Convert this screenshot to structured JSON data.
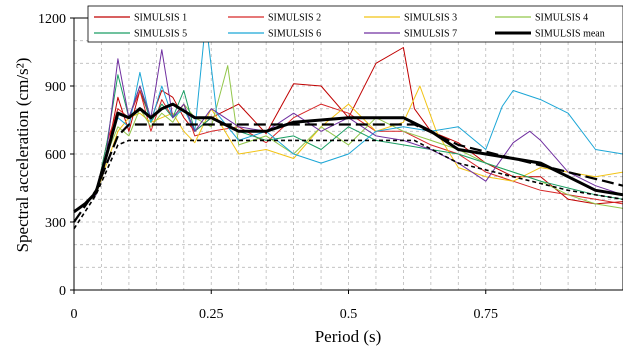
{
  "chart_data": {
    "type": "line",
    "title": "",
    "xlabel": "Period (s)",
    "ylabel": "Spectral acceleration (cm/s²)",
    "xlim": [
      0,
      1.0
    ],
    "ylim": [
      0,
      1200
    ],
    "x_ticks": [
      0,
      0.25,
      0.5,
      0.75
    ],
    "x_tick_labels": [
      "0",
      "0.25",
      "0.5",
      "0.75"
    ],
    "y_ticks": [
      0,
      300,
      600,
      900,
      1200
    ],
    "y_tick_labels": [
      "0",
      "300",
      "600",
      "900",
      "1200"
    ],
    "grid": "dashed",
    "legend_position": "top",
    "series": [
      {
        "name": "SIMULSIS 1",
        "color": "#c00000",
        "style": "solid",
        "points": [
          [
            0,
            350
          ],
          [
            0.02,
            380
          ],
          [
            0.04,
            420
          ],
          [
            0.06,
            600
          ],
          [
            0.08,
            850
          ],
          [
            0.1,
            700
          ],
          [
            0.12,
            880
          ],
          [
            0.14,
            750
          ],
          [
            0.16,
            880
          ],
          [
            0.18,
            850
          ],
          [
            0.2,
            760
          ],
          [
            0.22,
            700
          ],
          [
            0.25,
            760
          ],
          [
            0.3,
            820
          ],
          [
            0.35,
            690
          ],
          [
            0.4,
            910
          ],
          [
            0.45,
            900
          ],
          [
            0.5,
            760
          ],
          [
            0.55,
            1000
          ],
          [
            0.6,
            1070
          ],
          [
            0.62,
            800
          ],
          [
            0.65,
            700
          ],
          [
            0.7,
            650
          ],
          [
            0.75,
            560
          ],
          [
            0.8,
            500
          ],
          [
            0.85,
            500
          ],
          [
            0.9,
            400
          ],
          [
            0.95,
            380
          ],
          [
            1.0,
            390
          ]
        ]
      },
      {
        "name": "SIMULSIS 2",
        "color": "#d62728",
        "style": "solid",
        "points": [
          [
            0,
            350
          ],
          [
            0.02,
            380
          ],
          [
            0.04,
            420
          ],
          [
            0.06,
            650
          ],
          [
            0.08,
            800
          ],
          [
            0.1,
            760
          ],
          [
            0.12,
            880
          ],
          [
            0.14,
            700
          ],
          [
            0.16,
            840
          ],
          [
            0.18,
            760
          ],
          [
            0.2,
            820
          ],
          [
            0.22,
            680
          ],
          [
            0.25,
            700
          ],
          [
            0.3,
            720
          ],
          [
            0.35,
            650
          ],
          [
            0.4,
            760
          ],
          [
            0.45,
            820
          ],
          [
            0.5,
            780
          ],
          [
            0.55,
            700
          ],
          [
            0.6,
            700
          ],
          [
            0.65,
            640
          ],
          [
            0.7,
            600
          ],
          [
            0.75,
            520
          ],
          [
            0.8,
            480
          ],
          [
            0.85,
            440
          ],
          [
            0.9,
            420
          ],
          [
            0.95,
            400
          ],
          [
            1.0,
            380
          ]
        ]
      },
      {
        "name": "SIMULSIS 3",
        "color": "#f2c314",
        "style": "solid",
        "points": [
          [
            0,
            350
          ],
          [
            0.02,
            380
          ],
          [
            0.04,
            420
          ],
          [
            0.06,
            560
          ],
          [
            0.08,
            700
          ],
          [
            0.1,
            760
          ],
          [
            0.12,
            780
          ],
          [
            0.14,
            740
          ],
          [
            0.16,
            760
          ],
          [
            0.18,
            780
          ],
          [
            0.2,
            700
          ],
          [
            0.22,
            650
          ],
          [
            0.25,
            800
          ],
          [
            0.3,
            600
          ],
          [
            0.35,
            620
          ],
          [
            0.4,
            580
          ],
          [
            0.45,
            720
          ],
          [
            0.5,
            820
          ],
          [
            0.55,
            700
          ],
          [
            0.6,
            740
          ],
          [
            0.63,
            900
          ],
          [
            0.66,
            700
          ],
          [
            0.7,
            540
          ],
          [
            0.75,
            500
          ],
          [
            0.8,
            480
          ],
          [
            0.85,
            540
          ],
          [
            0.9,
            520
          ],
          [
            0.95,
            500
          ],
          [
            1.0,
            520
          ]
        ]
      },
      {
        "name": "SIMULSIS 4",
        "color": "#92c64a",
        "style": "solid",
        "points": [
          [
            0,
            350
          ],
          [
            0.02,
            380
          ],
          [
            0.04,
            420
          ],
          [
            0.06,
            600
          ],
          [
            0.08,
            720
          ],
          [
            0.1,
            680
          ],
          [
            0.12,
            800
          ],
          [
            0.14,
            720
          ],
          [
            0.16,
            780
          ],
          [
            0.18,
            740
          ],
          [
            0.2,
            820
          ],
          [
            0.22,
            760
          ],
          [
            0.25,
            720
          ],
          [
            0.28,
            990
          ],
          [
            0.3,
            640
          ],
          [
            0.35,
            680
          ],
          [
            0.4,
            600
          ],
          [
            0.45,
            720
          ],
          [
            0.5,
            640
          ],
          [
            0.55,
            760
          ],
          [
            0.6,
            700
          ],
          [
            0.65,
            660
          ],
          [
            0.7,
            620
          ],
          [
            0.75,
            560
          ],
          [
            0.8,
            520
          ],
          [
            0.85,
            480
          ],
          [
            0.9,
            420
          ],
          [
            0.95,
            380
          ],
          [
            1.0,
            360
          ]
        ]
      },
      {
        "name": "SIMULSIS 5",
        "color": "#1a9e63",
        "style": "solid",
        "points": [
          [
            0,
            350
          ],
          [
            0.02,
            380
          ],
          [
            0.04,
            420
          ],
          [
            0.06,
            650
          ],
          [
            0.08,
            950
          ],
          [
            0.1,
            760
          ],
          [
            0.12,
            900
          ],
          [
            0.14,
            740
          ],
          [
            0.16,
            820
          ],
          [
            0.18,
            760
          ],
          [
            0.2,
            880
          ],
          [
            0.22,
            700
          ],
          [
            0.25,
            760
          ],
          [
            0.3,
            700
          ],
          [
            0.35,
            660
          ],
          [
            0.4,
            680
          ],
          [
            0.45,
            620
          ],
          [
            0.5,
            720
          ],
          [
            0.55,
            660
          ],
          [
            0.6,
            640
          ],
          [
            0.65,
            620
          ],
          [
            0.7,
            600
          ],
          [
            0.75,
            560
          ],
          [
            0.8,
            520
          ],
          [
            0.85,
            480
          ],
          [
            0.9,
            450
          ],
          [
            0.95,
            420
          ],
          [
            1.0,
            400
          ]
        ]
      },
      {
        "name": "SIMULSIS 6",
        "color": "#1ba6d6",
        "style": "solid",
        "points": [
          [
            0,
            350
          ],
          [
            0.02,
            380
          ],
          [
            0.04,
            420
          ],
          [
            0.06,
            620
          ],
          [
            0.08,
            760
          ],
          [
            0.1,
            720
          ],
          [
            0.12,
            960
          ],
          [
            0.14,
            740
          ],
          [
            0.16,
            900
          ],
          [
            0.18,
            760
          ],
          [
            0.2,
            800
          ],
          [
            0.22,
            700
          ],
          [
            0.24,
            1190
          ],
          [
            0.26,
            780
          ],
          [
            0.3,
            660
          ],
          [
            0.35,
            700
          ],
          [
            0.4,
            600
          ],
          [
            0.45,
            560
          ],
          [
            0.5,
            600
          ],
          [
            0.55,
            700
          ],
          [
            0.6,
            720
          ],
          [
            0.65,
            700
          ],
          [
            0.7,
            720
          ],
          [
            0.75,
            620
          ],
          [
            0.78,
            810
          ],
          [
            0.8,
            880
          ],
          [
            0.85,
            840
          ],
          [
            0.9,
            780
          ],
          [
            0.95,
            620
          ],
          [
            1.0,
            600
          ]
        ]
      },
      {
        "name": "SIMULSIS 7",
        "color": "#7030a0",
        "style": "solid",
        "points": [
          [
            0,
            350
          ],
          [
            0.02,
            380
          ],
          [
            0.04,
            420
          ],
          [
            0.06,
            620
          ],
          [
            0.08,
            1020
          ],
          [
            0.1,
            760
          ],
          [
            0.12,
            900
          ],
          [
            0.14,
            760
          ],
          [
            0.16,
            1060
          ],
          [
            0.18,
            760
          ],
          [
            0.2,
            820
          ],
          [
            0.22,
            700
          ],
          [
            0.25,
            800
          ],
          [
            0.3,
            720
          ],
          [
            0.35,
            700
          ],
          [
            0.4,
            780
          ],
          [
            0.45,
            700
          ],
          [
            0.5,
            760
          ],
          [
            0.55,
            680
          ],
          [
            0.6,
            660
          ],
          [
            0.65,
            620
          ],
          [
            0.7,
            560
          ],
          [
            0.75,
            480
          ],
          [
            0.8,
            650
          ],
          [
            0.83,
            700
          ],
          [
            0.85,
            660
          ],
          [
            0.9,
            520
          ],
          [
            0.95,
            460
          ],
          [
            1.0,
            420
          ]
        ]
      },
      {
        "name": "SIMULSIS mean",
        "color": "#000000",
        "style": "thick",
        "points": [
          [
            0,
            345
          ],
          [
            0.02,
            380
          ],
          [
            0.04,
            430
          ],
          [
            0.06,
            600
          ],
          [
            0.08,
            780
          ],
          [
            0.1,
            760
          ],
          [
            0.12,
            800
          ],
          [
            0.14,
            760
          ],
          [
            0.16,
            800
          ],
          [
            0.18,
            820
          ],
          [
            0.2,
            790
          ],
          [
            0.22,
            760
          ],
          [
            0.25,
            760
          ],
          [
            0.3,
            700
          ],
          [
            0.35,
            700
          ],
          [
            0.4,
            740
          ],
          [
            0.45,
            750
          ],
          [
            0.5,
            760
          ],
          [
            0.55,
            760
          ],
          [
            0.6,
            760
          ],
          [
            0.65,
            700
          ],
          [
            0.7,
            620
          ],
          [
            0.75,
            600
          ],
          [
            0.8,
            580
          ],
          [
            0.85,
            560
          ],
          [
            0.9,
            500
          ],
          [
            0.95,
            440
          ],
          [
            1.0,
            420
          ]
        ]
      },
      {
        "name": "",
        "color": "#000000",
        "style": "dashed",
        "points": [
          [
            0,
            270
          ],
          [
            0.04,
            420
          ],
          [
            0.08,
            640
          ],
          [
            0.1,
            660
          ],
          [
            0.3,
            660
          ],
          [
            0.62,
            660
          ],
          [
            0.7,
            560
          ],
          [
            0.8,
            500
          ],
          [
            0.9,
            440
          ],
          [
            1.0,
            400
          ]
        ]
      },
      {
        "name": "",
        "color": "#000000",
        "style": "dashed-long",
        "points": [
          [
            0,
            300
          ],
          [
            0.04,
            440
          ],
          [
            0.08,
            680
          ],
          [
            0.1,
            730
          ],
          [
            0.32,
            730
          ],
          [
            0.62,
            730
          ],
          [
            0.7,
            640
          ],
          [
            0.8,
            580
          ],
          [
            0.9,
            520
          ],
          [
            1.0,
            460
          ]
        ]
      }
    ]
  }
}
